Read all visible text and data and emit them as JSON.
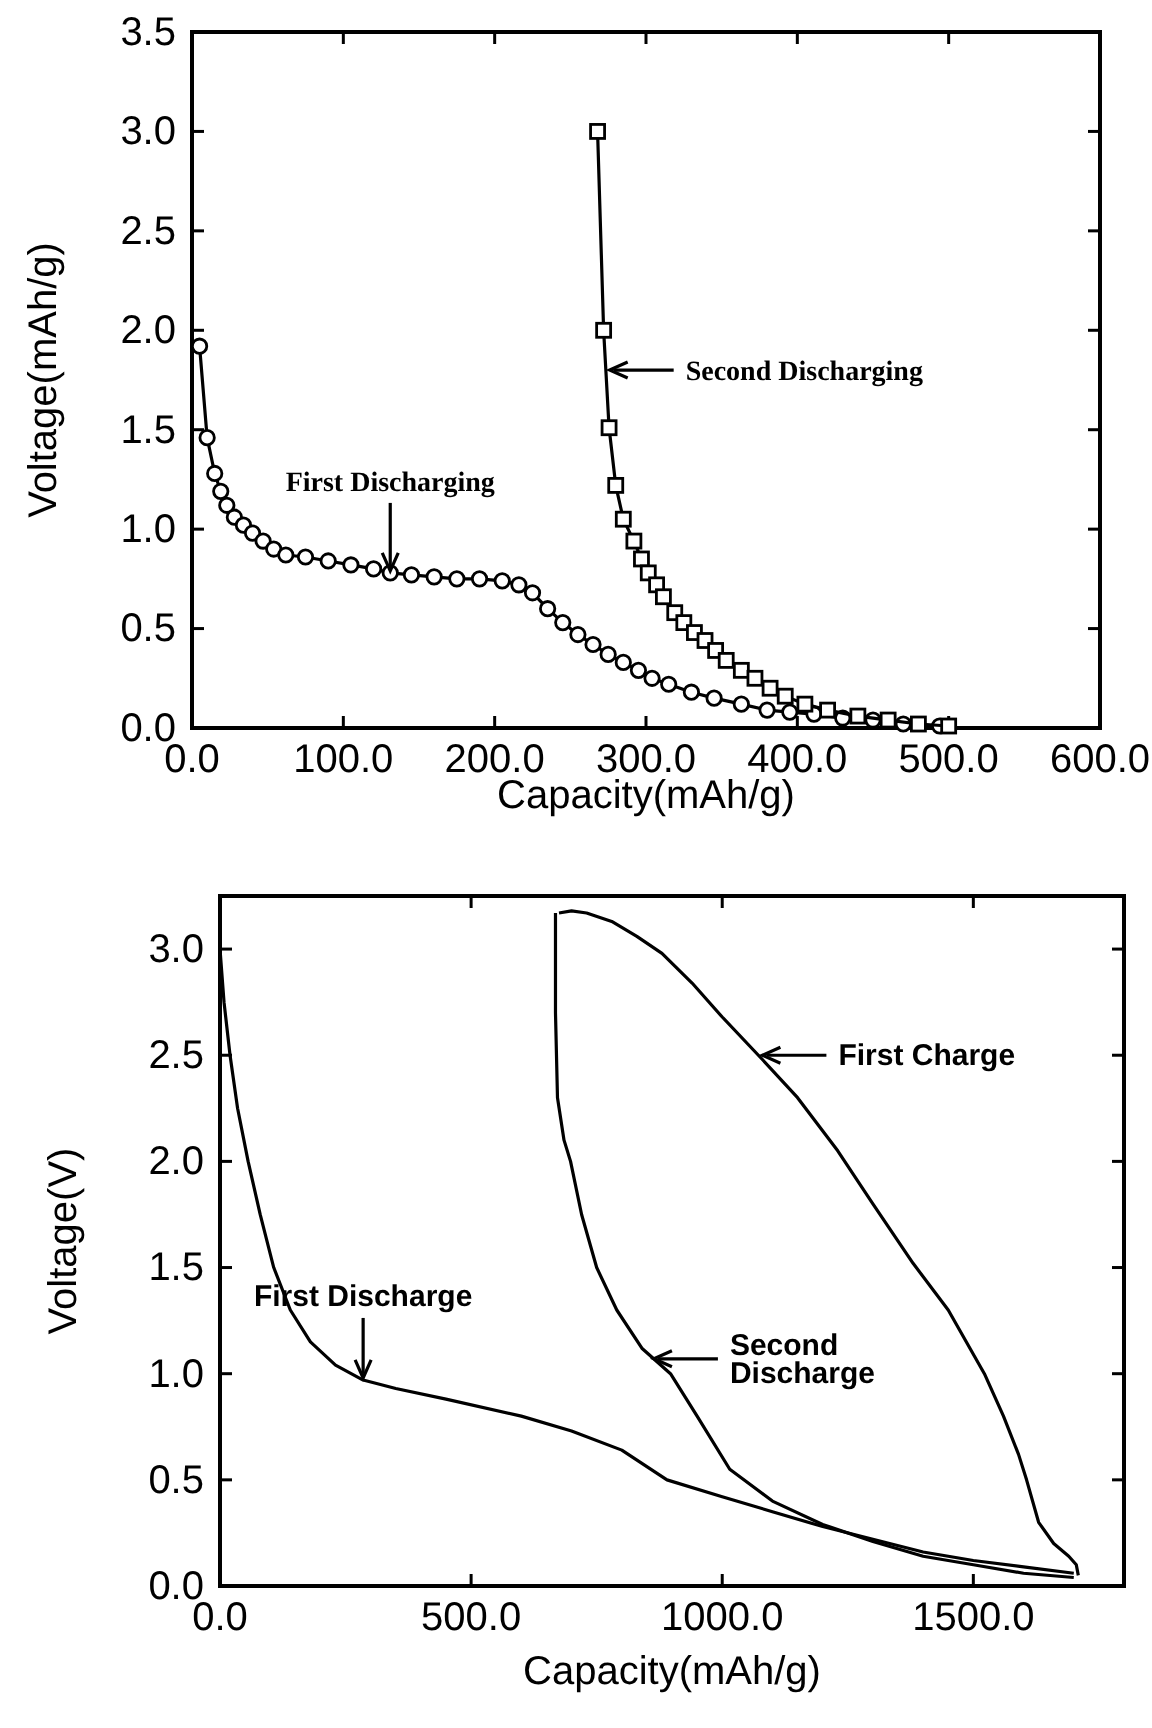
{
  "chart_data": [
    {
      "type": "line",
      "xlabel": "Capacity(mAh/g)",
      "ylabel": "Voltage(mAh/g)",
      "xlim": [
        0,
        600
      ],
      "ylim": [
        0,
        3.5
      ],
      "xticks": [
        {
          "value": 0,
          "label": "0.0"
        },
        {
          "value": 100,
          "label": "100.0"
        },
        {
          "value": 200,
          "label": "200.0"
        },
        {
          "value": 300,
          "label": "300.0"
        },
        {
          "value": 400,
          "label": "400.0"
        },
        {
          "value": 500,
          "label": "500.0"
        },
        {
          "value": 600,
          "label": "600.0"
        }
      ],
      "yticks": [
        {
          "value": 0,
          "label": "0.0"
        },
        {
          "value": 0.5,
          "label": "0.5"
        },
        {
          "value": 1,
          "label": "1.0"
        },
        {
          "value": 1.5,
          "label": "1.5"
        },
        {
          "value": 2,
          "label": "2.0"
        },
        {
          "value": 2.5,
          "label": "2.5"
        },
        {
          "value": 3,
          "label": "3.0"
        },
        {
          "value": 3.5,
          "label": "3.5"
        }
      ],
      "series": [
        {
          "color": "#000000",
          "marker": "circle",
          "x": [
            5,
            10,
            15,
            19,
            23,
            28,
            34,
            40,
            47,
            54,
            62,
            75,
            90,
            105,
            120,
            131,
            145,
            160,
            175,
            190,
            205,
            216,
            225,
            235,
            245,
            255,
            265,
            275,
            285,
            295,
            304,
            315,
            330,
            345,
            363,
            380,
            395,
            411,
            430,
            450,
            470,
            494
          ],
          "values": [
            1.92,
            1.46,
            1.28,
            1.19,
            1.12,
            1.06,
            1.02,
            0.98,
            0.94,
            0.9,
            0.87,
            0.86,
            0.84,
            0.82,
            0.8,
            0.78,
            0.77,
            0.76,
            0.75,
            0.75,
            0.74,
            0.72,
            0.68,
            0.6,
            0.53,
            0.47,
            0.42,
            0.37,
            0.33,
            0.29,
            0.25,
            0.22,
            0.18,
            0.15,
            0.12,
            0.09,
            0.08,
            0.07,
            0.05,
            0.04,
            0.02,
            0.01
          ]
        },
        {
          "color": "#000000",
          "marker": "square",
          "x": [
            268,
            272,
            275.6,
            280,
            285,
            292,
            297,
            301.5,
            307,
            311.5,
            319,
            325,
            332,
            339,
            346,
            353,
            363,
            372,
            382,
            392,
            405,
            420,
            440,
            460,
            480,
            500
          ],
          "values": [
            3.0,
            2.0,
            1.51,
            1.22,
            1.05,
            0.94,
            0.85,
            0.78,
            0.72,
            0.66,
            0.58,
            0.53,
            0.48,
            0.44,
            0.39,
            0.34,
            0.29,
            0.25,
            0.2,
            0.16,
            0.12,
            0.09,
            0.06,
            0.04,
            0.02,
            0.01
          ]
        }
      ],
      "annotations": [
        {
          "text": "First Discharging",
          "x": 131,
          "y": 0.79
        },
        {
          "text": "Second Discharging",
          "x": 276,
          "y": 1.8
        }
      ]
    },
    {
      "type": "line",
      "xlabel": "Capacity(mAh/g)",
      "ylabel": "Voltage(V)",
      "xlim": [
        0,
        1800
      ],
      "ylim": [
        0,
        3.25
      ],
      "xticks": [
        {
          "value": 0,
          "label": "0.0"
        },
        {
          "value": 500,
          "label": "500.0"
        },
        {
          "value": 1000,
          "label": "1000.0"
        },
        {
          "value": 1500,
          "label": "1500.0"
        }
      ],
      "yticks": [
        {
          "value": 0,
          "label": "0.0"
        },
        {
          "value": 0.5,
          "label": "0.5"
        },
        {
          "value": 1,
          "label": "1.0"
        },
        {
          "value": 1.5,
          "label": "1.5"
        },
        {
          "value": 2,
          "label": "2.0"
        },
        {
          "value": 2.5,
          "label": "2.5"
        },
        {
          "value": 3,
          "label": "3.0"
        }
      ],
      "series": [
        {
          "color": "#000000",
          "x": [
            0,
            8,
            20,
            35,
            56,
            80,
            107,
            140,
            180,
            230,
            285,
            350,
            450,
            600,
            700,
            800,
            890,
            1000,
            1100,
            1200,
            1300,
            1400,
            1500,
            1600,
            1700
          ],
          "values": [
            3.0,
            2.75,
            2.5,
            2.25,
            2.0,
            1.75,
            1.5,
            1.3,
            1.15,
            1.04,
            0.97,
            0.93,
            0.88,
            0.8,
            0.73,
            0.64,
            0.5,
            0.42,
            0.35,
            0.28,
            0.22,
            0.16,
            0.12,
            0.09,
            0.06
          ]
        },
        {
          "color": "#000000",
          "x": [
            668,
            668,
            672,
            685,
            698,
            720,
            750,
            790,
            840,
            897,
            950,
            1015,
            1100,
            1200,
            1300,
            1400,
            1500,
            1600,
            1700
          ],
          "values": [
            3.17,
            2.7,
            2.3,
            2.1,
            2.0,
            1.75,
            1.5,
            1.3,
            1.12,
            1.0,
            0.8,
            0.55,
            0.4,
            0.29,
            0.21,
            0.14,
            0.1,
            0.06,
            0.04
          ]
        },
        {
          "color": "#000000",
          "x": [
            675,
            700,
            730,
            780,
            830,
            880,
            940,
            1000,
            1080,
            1150,
            1230,
            1300,
            1380,
            1450,
            1522,
            1560,
            1590,
            1606,
            1630,
            1660,
            1690,
            1705,
            1709
          ],
          "values": [
            3.17,
            3.18,
            3.17,
            3.13,
            3.06,
            2.98,
            2.84,
            2.68,
            2.48,
            2.3,
            2.05,
            1.8,
            1.52,
            1.3,
            1.0,
            0.8,
            0.62,
            0.5,
            0.3,
            0.2,
            0.14,
            0.1,
            0.05
          ]
        }
      ],
      "annotations": [
        {
          "text": "First Discharge",
          "x": 285,
          "y": 0.98
        },
        {
          "text": "Second\nDischarge",
          "x": 864,
          "y": 1.07
        },
        {
          "text": "First Charge",
          "x": 1080,
          "y": 2.5
        }
      ]
    }
  ]
}
